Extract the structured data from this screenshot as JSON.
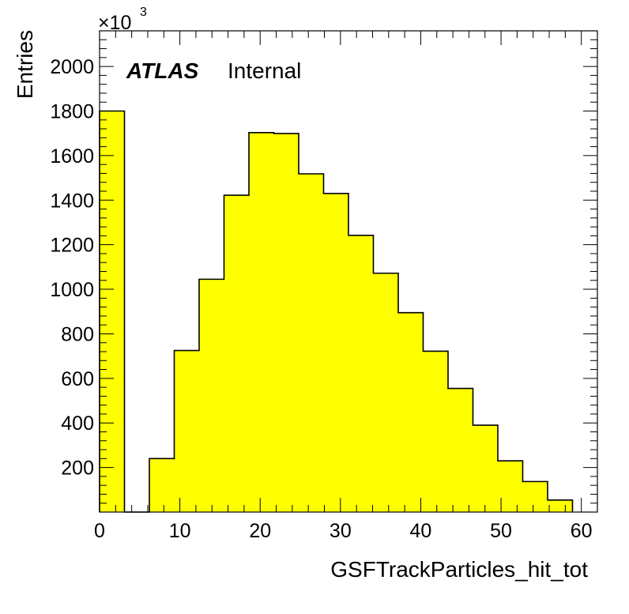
{
  "chart_data": {
    "type": "bar",
    "title": "",
    "xlabel": "GSFTrackParticles_hit_tot",
    "ylabel": "Entries",
    "y_multiplier_base": "×10",
    "y_multiplier_exp": "3",
    "annotation_bold": "ATLAS",
    "annotation_text": "Internal",
    "xlim": [
      0,
      62
    ],
    "ylim": [
      0,
      2160
    ],
    "x_ticks": [
      0,
      10,
      20,
      30,
      40,
      50,
      60
    ],
    "y_ticks": [
      200,
      400,
      600,
      800,
      1000,
      1200,
      1400,
      1600,
      1800,
      2000
    ],
    "bin_width": 3.1,
    "bins": [
      {
        "x0": 0.0,
        "x1": 3.1,
        "value": 1800
      },
      {
        "x0": 3.1,
        "x1": 6.2,
        "value": 0
      },
      {
        "x0": 6.2,
        "x1": 9.3,
        "value": 240
      },
      {
        "x0": 9.3,
        "x1": 12.4,
        "value": 725
      },
      {
        "x0": 12.4,
        "x1": 15.5,
        "value": 1045
      },
      {
        "x0": 15.5,
        "x1": 18.6,
        "value": 1422
      },
      {
        "x0": 18.6,
        "x1": 21.7,
        "value": 1703
      },
      {
        "x0": 21.7,
        "x1": 24.8,
        "value": 1699
      },
      {
        "x0": 24.8,
        "x1": 27.9,
        "value": 1518
      },
      {
        "x0": 27.9,
        "x1": 31.0,
        "value": 1430
      },
      {
        "x0": 31.0,
        "x1": 34.1,
        "value": 1242
      },
      {
        "x0": 34.1,
        "x1": 37.2,
        "value": 1072
      },
      {
        "x0": 37.2,
        "x1": 40.3,
        "value": 895
      },
      {
        "x0": 40.3,
        "x1": 43.4,
        "value": 722
      },
      {
        "x0": 43.4,
        "x1": 46.5,
        "value": 555
      },
      {
        "x0": 46.5,
        "x1": 49.6,
        "value": 390
      },
      {
        "x0": 49.6,
        "x1": 52.7,
        "value": 230
      },
      {
        "x0": 52.7,
        "x1": 55.8,
        "value": 137
      },
      {
        "x0": 55.8,
        "x1": 58.9,
        "value": 54
      }
    ],
    "fill_color": "#ffff00",
    "line_color": "#000000",
    "grid": false,
    "legend": "none"
  }
}
